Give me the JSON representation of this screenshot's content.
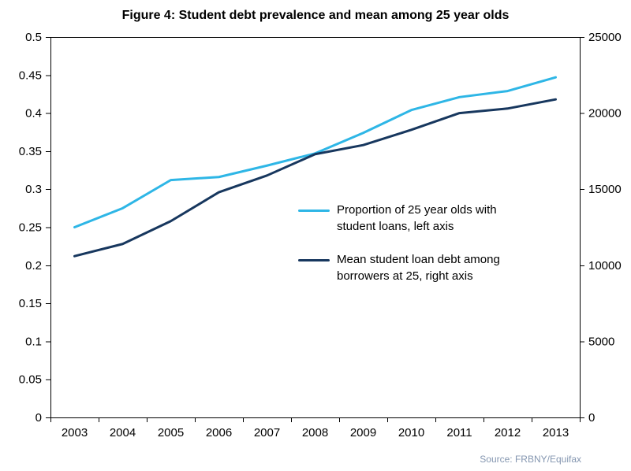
{
  "title": "Figure 4: Student debt prevalence and mean among 25 year olds",
  "source": "Source: FRBNY/Equifax",
  "chart_data": {
    "type": "line",
    "title": "Figure 4: Student debt prevalence and mean among 25 year olds",
    "categories": [
      "2003",
      "2004",
      "2005",
      "2006",
      "2007",
      "2008",
      "2009",
      "2010",
      "2011",
      "2012",
      "2013"
    ],
    "series": [
      {
        "id": "proportion-line",
        "name": "Proportion of 25 year olds with student loans, left axis",
        "axis": "left",
        "color": "#2EB6E6",
        "values": [
          0.25,
          0.275,
          0.312,
          0.316,
          0.331,
          0.347,
          0.374,
          0.404,
          0.421,
          0.429,
          0.447
        ]
      },
      {
        "id": "mean-debt-line",
        "name": "Mean student loan debt among borrowers at 25, right axis",
        "axis": "right",
        "color": "#17375E",
        "values": [
          10600,
          11400,
          12900,
          14800,
          15900,
          17300,
          17900,
          18900,
          20000,
          20300,
          20900
        ]
      }
    ],
    "left_axis": {
      "min": 0,
      "max": 0.5,
      "tick_step": 0.05,
      "tick_labels": [
        "0",
        "0.05",
        "0.1",
        "0.15",
        "0.2",
        "0.25",
        "0.3",
        "0.35",
        "0.4",
        "0.45",
        "0.5"
      ]
    },
    "right_axis": {
      "min": 0,
      "max": 25000,
      "tick_step": 5000,
      "tick_labels": [
        "0",
        "5000",
        "10000",
        "15000",
        "20000",
        "25000"
      ]
    },
    "xlabel": "",
    "grid": false,
    "legend_position": "inside-right-middle",
    "legend": [
      {
        "label": "Proportion of 25 year olds with\nstudent loans, left axis"
      },
      {
        "label": "Mean student loan debt among\nborrowers at 25, right axis"
      }
    ]
  }
}
